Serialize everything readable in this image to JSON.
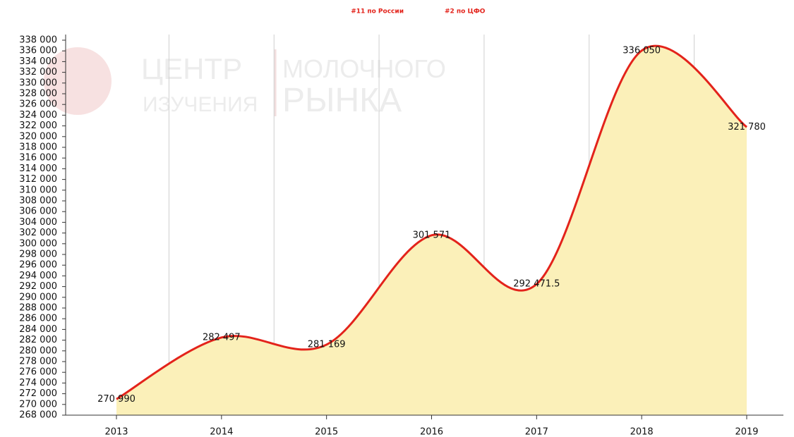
{
  "chart_data": {
    "type": "area",
    "subtitle": [
      "#11 по России",
      "#2 по ЦФО"
    ],
    "watermark": [
      "ЦЕНТР",
      "ИЗУЧЕНИЯ",
      "МОЛОЧНОГО",
      "РЫНКА"
    ],
    "categories": [
      "2013",
      "2014",
      "2015",
      "2016",
      "2017",
      "2018",
      "2019"
    ],
    "series": [
      {
        "color": "#e3231b",
        "fill": "#fbf0b9",
        "values": [
          270990,
          282497,
          281169,
          301571,
          292471.5,
          336050,
          321780
        ],
        "value_labels": [
          "270 990",
          "282 497",
          "281 169",
          "301 571",
          "292 471.5",
          "336 050",
          "321 780"
        ]
      }
    ],
    "ylim": [
      268000,
      338000
    ],
    "yticks": [
      {
        "value": 268000,
        "label": "268 000"
      },
      {
        "value": 270000,
        "label": "270 000"
      },
      {
        "value": 272000,
        "label": "272 000"
      },
      {
        "value": 274000,
        "label": "274 000"
      },
      {
        "value": 276000,
        "label": "276 000"
      },
      {
        "value": 278000,
        "label": "278 000"
      },
      {
        "value": 280000,
        "label": "280 000"
      },
      {
        "value": 282000,
        "label": "282 000"
      },
      {
        "value": 284000,
        "label": "284 000"
      },
      {
        "value": 286000,
        "label": "286 000"
      },
      {
        "value": 288000,
        "label": "288 000"
      },
      {
        "value": 290000,
        "label": "290 000"
      },
      {
        "value": 292000,
        "label": "292 000"
      },
      {
        "value": 294000,
        "label": "294 000"
      },
      {
        "value": 296000,
        "label": "296 000"
      },
      {
        "value": 298000,
        "label": "298 000"
      },
      {
        "value": 300000,
        "label": "300 000"
      },
      {
        "value": 302000,
        "label": "302 000"
      },
      {
        "value": 304000,
        "label": "304 000"
      },
      {
        "value": 306000,
        "label": "306 000"
      },
      {
        "value": 308000,
        "label": "308 000"
      },
      {
        "value": 310000,
        "label": "310 000"
      },
      {
        "value": 312000,
        "label": "312 000"
      },
      {
        "value": 314000,
        "label": "314 000"
      },
      {
        "value": 316000,
        "label": "316 000"
      },
      {
        "value": 318000,
        "label": "318 000"
      },
      {
        "value": 320000,
        "label": "320 000"
      },
      {
        "value": 322000,
        "label": "322 000"
      },
      {
        "value": 324000,
        "label": "324 000"
      },
      {
        "value": 326000,
        "label": "326 000"
      },
      {
        "value": 328000,
        "label": "328 000"
      },
      {
        "value": 330000,
        "label": "330 000"
      },
      {
        "value": 332000,
        "label": "332 000"
      },
      {
        "value": 334000,
        "label": "334 000"
      },
      {
        "value": 336000,
        "label": "336 000"
      },
      {
        "value": 338000,
        "label": "338 000"
      }
    ],
    "grid": true
  }
}
